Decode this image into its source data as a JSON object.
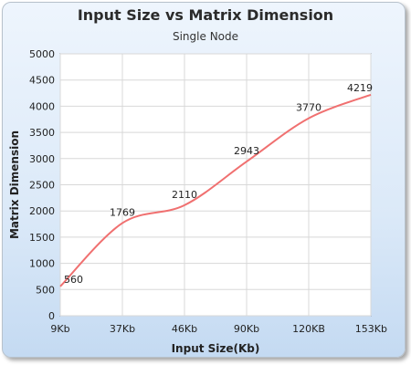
{
  "chart_data": {
    "type": "line",
    "title": "Input Size vs Matrix Dimension",
    "subtitle": "Single Node",
    "xlabel": "Input Size(Kb)",
    "ylabel": "Matrix Dimension",
    "categories": [
      "9Kb",
      "37Kb",
      "46Kb",
      "90Kb",
      "120KB",
      "153Kb"
    ],
    "values": [
      560,
      1769,
      2110,
      2943,
      3770,
      4219
    ],
    "ylim": [
      0,
      5000
    ],
    "yticks": [
      0,
      500,
      1000,
      1500,
      2000,
      2500,
      3000,
      3500,
      4000,
      4500,
      5000
    ],
    "grid": true,
    "legend": "none",
    "line_color": "#f07070",
    "smooth": true
  }
}
